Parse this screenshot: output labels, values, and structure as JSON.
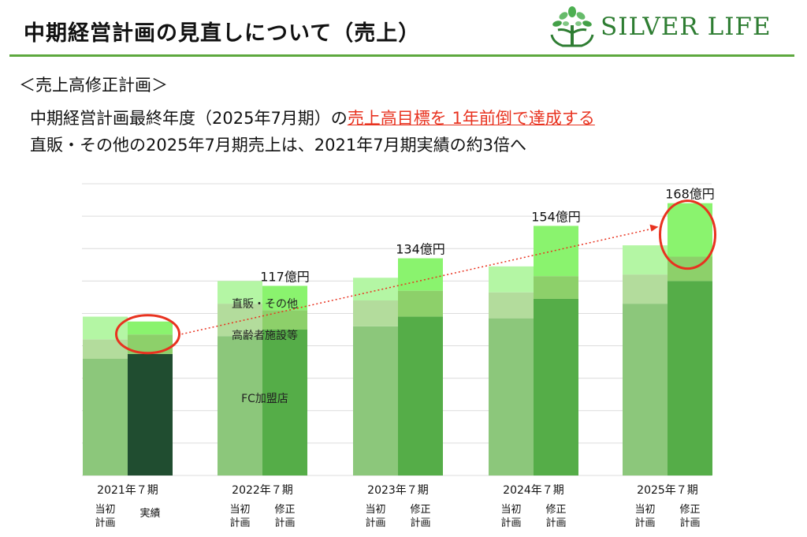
{
  "header": {
    "title": "中期経営計画の見直しについて（売上）",
    "logo_text": "SILVER LIFE"
  },
  "section_label": "＜売上高修正計画＞",
  "text": {
    "line1_before": "中期経営計画最終年度（2025年7月期）の",
    "line1_highlight": "売上高目標を 1年前倒で達成する",
    "line2": "直販・その他の2025年7月期売上は、2021年7月期実績の約3倍へ"
  },
  "colors": {
    "fc_plan": "#8cc77b",
    "elderly_plan": "#b3dc9c",
    "direct_plan": "#b4f6a4",
    "fc_revised": "#55ad48",
    "elderly_revised": "#8dd06a",
    "direct_revised": "#8af36e",
    "fc_actual": "#204d30",
    "circle": "#e8321f",
    "arrow": "#e8321f",
    "accent_green": "#5da83e"
  },
  "chart_data": {
    "type": "bar",
    "stacked": true,
    "unit": "億円",
    "ylim": [
      0,
      180
    ],
    "grid": true,
    "categories": [
      "2021年７期",
      "2022年７期",
      "2023年７期",
      "2024年７期",
      "2025年７期"
    ],
    "bar_labels": [
      [
        "当初\n計画",
        "実績"
      ],
      [
        "当初\n計画",
        "修正\n計画"
      ],
      [
        "当初\n計画",
        "修正\n計画"
      ],
      [
        "当初\n計画",
        "修正\n計画"
      ],
      [
        "当初\n計画",
        "修正\n計画"
      ]
    ],
    "segment_names": [
      "FC加盟店",
      "高齢者施設等",
      "直販・その他"
    ],
    "series": [
      {
        "bar": "plan",
        "values": [
          [
            72,
            12,
            14
          ],
          [
            86,
            20,
            14
          ],
          [
            92,
            16,
            14
          ],
          [
            97,
            16,
            16
          ],
          [
            106,
            18,
            18
          ]
        ]
      },
      {
        "bar": "revised",
        "values": [
          [
            75,
            12,
            8
          ],
          [
            90,
            12,
            15
          ],
          [
            98,
            16,
            20
          ],
          [
            109,
            14,
            31
          ],
          [
            120,
            15,
            33
          ]
        ]
      }
    ],
    "totals": [
      "",
      "117億円",
      "134億円",
      "154億円",
      "168億円"
    ],
    "annotations": {
      "direct_label": "直販・その他",
      "elderly_label": "高齢者施設等",
      "fc_label": "FC加盟店"
    }
  }
}
